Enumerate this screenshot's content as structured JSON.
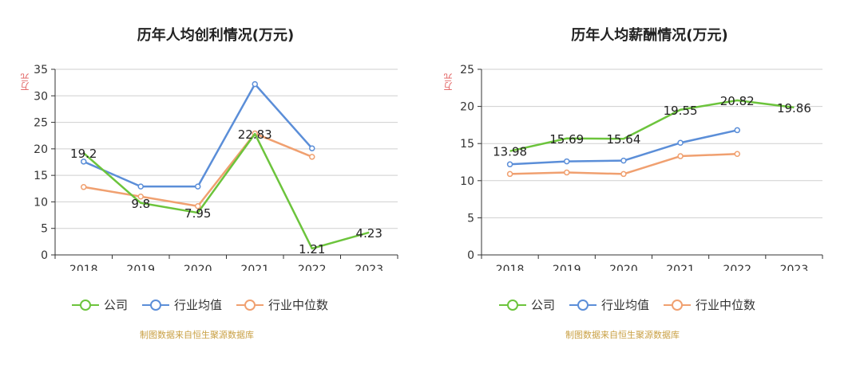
{
  "legend": {
    "company": "公司",
    "industry_avg": "行业均值",
    "industry_median": "行业中位数"
  },
  "source": "制图数据来自恒生聚源数据库",
  "colors": {
    "company": "#6cc43c",
    "industry_avg": "#5b8ed8",
    "industry_median": "#f0a070",
    "grid": "#cfcfcf",
    "axis": "#333333",
    "unit": "#e05a5a",
    "source": "#c9a044"
  },
  "chart_data": [
    {
      "type": "line",
      "title": "历年人均创利情况(万元)",
      "ylabel": "万元",
      "categories": [
        "2018",
        "2019",
        "2020",
        "2021",
        "2022",
        "2023"
      ],
      "ylim": [
        0,
        35
      ],
      "yticks": [
        0,
        5,
        10,
        15,
        20,
        25,
        30,
        35
      ],
      "series": [
        {
          "name": "公司",
          "key": "company",
          "values": [
            19.2,
            9.8,
            7.95,
            22.83,
            1.21,
            4.23
          ],
          "labels": [
            "19.2",
            "9.8",
            "7.95",
            "22.83",
            "1.21",
            "4.23"
          ]
        },
        {
          "name": "行业均值",
          "key": "industry_avg",
          "values": [
            17.6,
            12.9,
            12.9,
            32.2,
            20.1,
            null
          ]
        },
        {
          "name": "行业中位数",
          "key": "industry_median",
          "values": [
            12.8,
            11.0,
            9.2,
            22.9,
            18.5,
            null
          ]
        }
      ],
      "legend_position": "bottom-left",
      "grid": true
    },
    {
      "type": "line",
      "title": "历年人均薪酬情况(万元)",
      "ylabel": "万元",
      "categories": [
        "2018",
        "2019",
        "2020",
        "2021",
        "2022",
        "2023"
      ],
      "ylim": [
        0,
        25
      ],
      "yticks": [
        0,
        5,
        10,
        15,
        20,
        25
      ],
      "series": [
        {
          "name": "公司",
          "key": "company",
          "values": [
            13.98,
            15.69,
            15.64,
            19.55,
            20.82,
            19.86
          ],
          "labels": [
            "13.98",
            "15.69",
            "15.64",
            "19.55",
            "20.82",
            "19.86"
          ]
        },
        {
          "name": "行业均值",
          "key": "industry_avg",
          "values": [
            12.2,
            12.6,
            12.7,
            15.1,
            16.8,
            null
          ]
        },
        {
          "name": "行业中位数",
          "key": "industry_median",
          "values": [
            10.9,
            11.1,
            10.9,
            13.3,
            13.6,
            null
          ]
        }
      ],
      "legend_position": "bottom-left",
      "grid": true
    }
  ]
}
